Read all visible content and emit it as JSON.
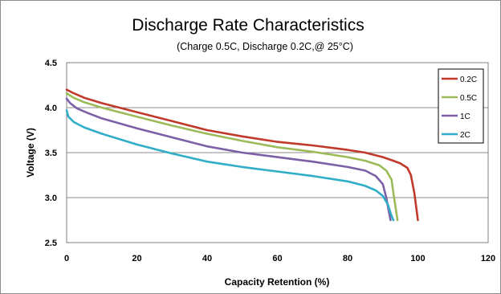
{
  "chart_data": {
    "type": "line",
    "title": "Discharge Rate Characteristics",
    "subtitle": "(Charge 0.5C, Discharge 0.2C,@ 25°C)",
    "xlabel": "Capacity  Retention (%)",
    "ylabel": "Voltage (V)",
    "xlim": [
      0,
      120
    ],
    "ylim": [
      2.5,
      4.5
    ],
    "xticks": [
      "0",
      "20",
      "40",
      "60",
      "80",
      "100",
      "120"
    ],
    "yticks": [
      "2.5",
      "3.0",
      "3.5",
      "4.0",
      "4.5"
    ],
    "grid": "horizontal",
    "legend_position": "top-right",
    "series": [
      {
        "name": "0.2C",
        "color": "#c0392b",
        "x": [
          0,
          2,
          5,
          10,
          20,
          30,
          40,
          50,
          60,
          70,
          80,
          85,
          90,
          93,
          95,
          97,
          98,
          99,
          99.5,
          100
        ],
        "y": [
          4.2,
          4.16,
          4.11,
          4.05,
          3.95,
          3.85,
          3.75,
          3.68,
          3.62,
          3.58,
          3.53,
          3.5,
          3.45,
          3.41,
          3.38,
          3.33,
          3.25,
          3.05,
          2.9,
          2.75
        ]
      },
      {
        "name": "0.5C",
        "color": "#9bbb59",
        "x": [
          0,
          2,
          5,
          10,
          20,
          30,
          40,
          50,
          60,
          70,
          80,
          85,
          89,
          91,
          92.5,
          93.2,
          93.8,
          94.2
        ],
        "y": [
          4.16,
          4.11,
          4.06,
          4.0,
          3.9,
          3.8,
          3.71,
          3.63,
          3.56,
          3.51,
          3.45,
          3.41,
          3.36,
          3.3,
          3.2,
          3.0,
          2.85,
          2.75
        ]
      },
      {
        "name": "1C",
        "color": "#7d5fa8",
        "x": [
          0,
          1,
          3,
          6,
          10,
          20,
          30,
          40,
          50,
          60,
          70,
          80,
          85,
          88,
          90,
          91,
          91.7,
          92.2
        ],
        "y": [
          4.1,
          4.05,
          3.99,
          3.94,
          3.88,
          3.77,
          3.67,
          3.57,
          3.5,
          3.45,
          3.4,
          3.34,
          3.3,
          3.24,
          3.15,
          3.0,
          2.85,
          2.75
        ]
      },
      {
        "name": "2C",
        "color": "#31aec7",
        "x": [
          0,
          0.5,
          2,
          5,
          10,
          20,
          30,
          40,
          50,
          60,
          70,
          80,
          85,
          88,
          90,
          91.5,
          92.3,
          93
        ],
        "y": [
          3.97,
          3.9,
          3.84,
          3.78,
          3.71,
          3.59,
          3.49,
          3.4,
          3.34,
          3.29,
          3.24,
          3.18,
          3.13,
          3.08,
          3.02,
          2.92,
          2.82,
          2.75
        ]
      }
    ]
  }
}
